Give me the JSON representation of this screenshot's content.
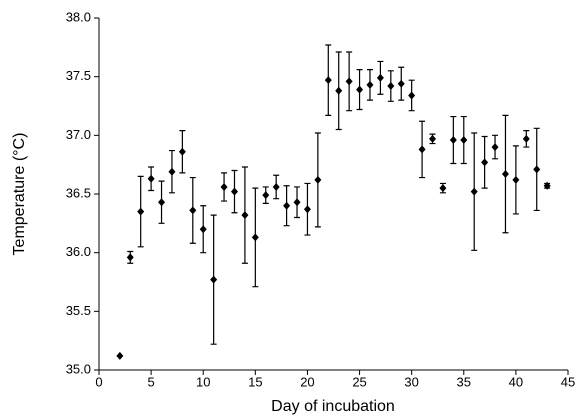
{
  "chart_data": {
    "type": "scatter",
    "x_label": "Day of incubation",
    "y_label": "Temperature (°C)",
    "xlim": [
      0,
      45
    ],
    "xticks": [
      0,
      5,
      10,
      15,
      20,
      25,
      30,
      35,
      40,
      45
    ],
    "ylim": [
      35,
      38
    ],
    "yticks": [
      {
        "value": 35,
        "label": "35.0"
      },
      35.5,
      {
        "value": 36,
        "label": "36.0"
      },
      36.5,
      {
        "value": 37,
        "label": "37.0"
      },
      37.5,
      {
        "value": 38,
        "label": "38.0"
      }
    ],
    "grid": false,
    "series": [
      {
        "color": "#000000",
        "x": [
          2,
          3,
          4,
          5,
          6,
          7,
          8,
          9,
          10,
          11,
          12,
          13,
          14,
          15,
          16,
          17,
          18,
          19,
          20,
          21,
          22,
          23,
          24,
          25,
          26,
          27,
          28,
          29,
          30,
          31,
          32,
          33,
          34,
          35,
          36,
          37,
          38,
          39,
          40,
          41,
          42,
          43
        ],
        "values": [
          35.12,
          35.96,
          36.35,
          36.63,
          36.43,
          36.69,
          36.86,
          36.36,
          36.2,
          35.77,
          36.56,
          36.52,
          36.32,
          36.13,
          36.49,
          36.56,
          36.4,
          36.43,
          36.37,
          36.62,
          37.47,
          37.38,
          37.46,
          37.39,
          37.43,
          37.49,
          37.42,
          37.44,
          37.34,
          36.88,
          36.97,
          36.55,
          36.96,
          36.96,
          36.52,
          36.77,
          36.9,
          36.67,
          36.62,
          36.97,
          36.71,
          36.57
        ],
        "errors": [
          0,
          0.05,
          0.3,
          0.1,
          0.18,
          0.18,
          0.18,
          0.28,
          0.2,
          0.55,
          0.12,
          0.18,
          0.41,
          0.42,
          0.07,
          0.1,
          0.17,
          0.13,
          0.22,
          0.4,
          0.3,
          0.33,
          0.25,
          0.17,
          0.13,
          0.14,
          0.13,
          0.14,
          0.13,
          0.24,
          0.04,
          0.04,
          0.2,
          0.2,
          0.5,
          0.22,
          0.1,
          0.5,
          0.29,
          0.07,
          0.35,
          0.02
        ]
      }
    ]
  }
}
